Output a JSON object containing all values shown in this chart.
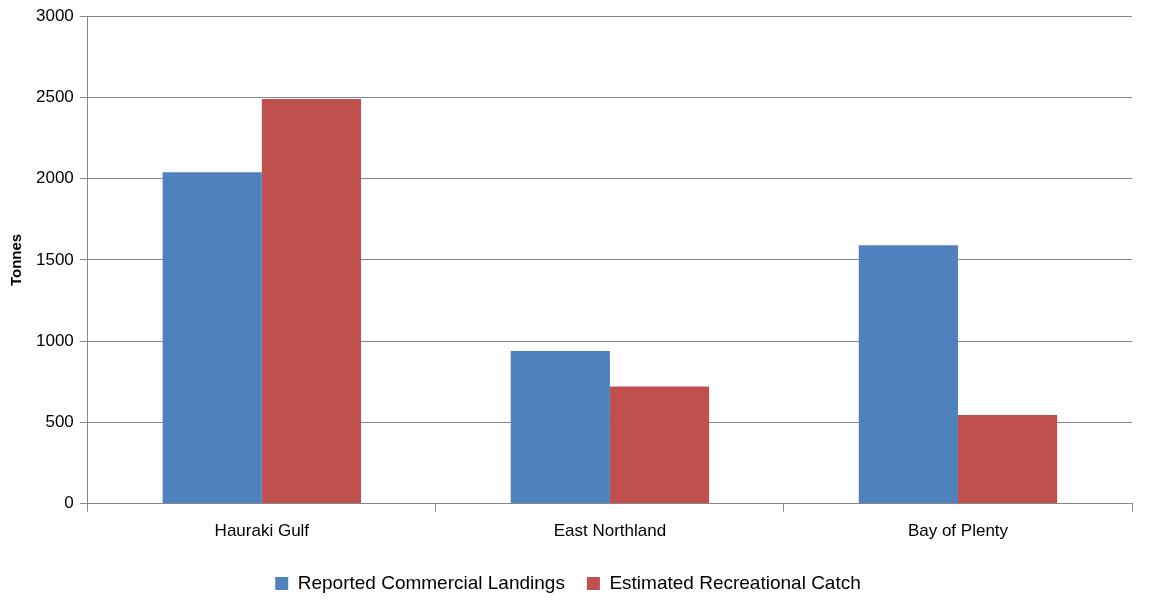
{
  "chart_data": {
    "type": "bar",
    "ylabel": "Tonnes",
    "categories": [
      "Hauraki Gulf",
      "East Northland",
      "Bay of Plenty"
    ],
    "series": [
      {
        "name": "Reported Commercial Landings",
        "color": "#4f81bd",
        "values": [
          2040,
          940,
          1590
        ]
      },
      {
        "name": "Estimated Recreational Catch",
        "color": "#c0504d",
        "values": [
          2490,
          720,
          545
        ]
      }
    ],
    "ylim": [
      0,
      3000
    ],
    "yticks": [
      0,
      500,
      1000,
      1500,
      2000,
      2500,
      3000
    ],
    "grid": "y",
    "legend": "bottom"
  }
}
